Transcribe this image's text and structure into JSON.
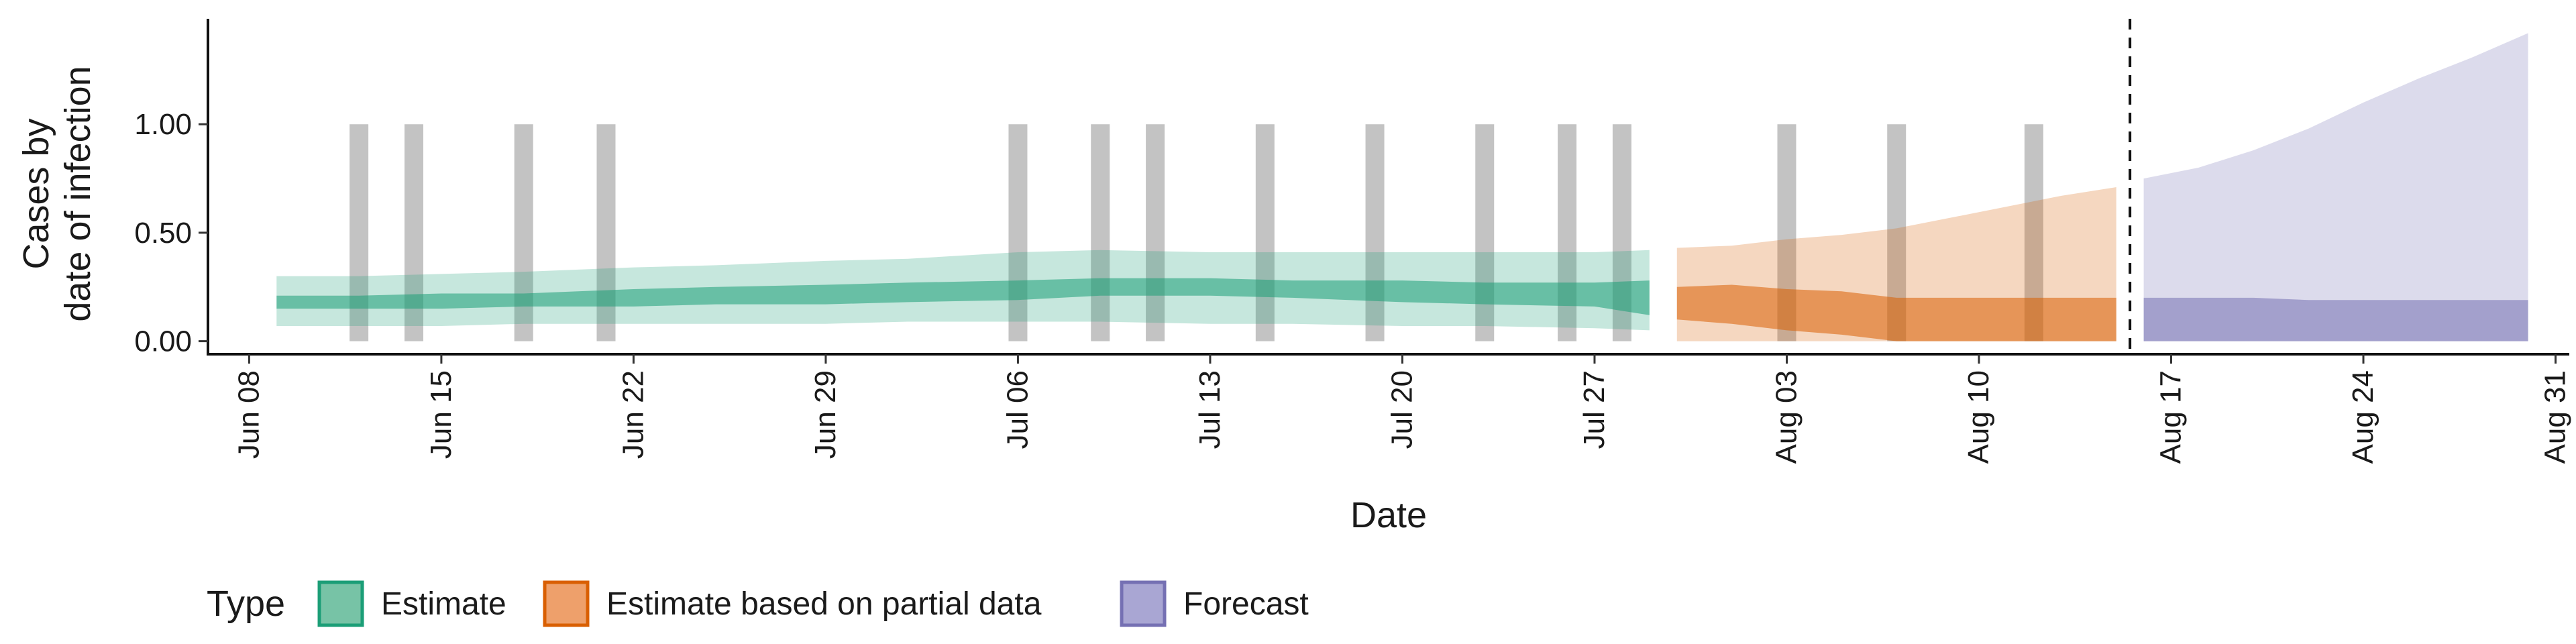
{
  "chart_data": {
    "type": "area",
    "title": "",
    "xlabel": "Date",
    "ylabel_lines": [
      "Cases by",
      "date of infection"
    ],
    "x_start_date": "2020-06-08",
    "xlim": [
      -1.5,
      84.5
    ],
    "ylim": [
      -0.06,
      1.48
    ],
    "y_ticks": [
      0.0,
      0.5,
      1.0
    ],
    "y_tick_labels": [
      "0.00",
      "0.50",
      "1.00"
    ],
    "x_tick_offsets": [
      0,
      7,
      14,
      21,
      28,
      35,
      42,
      49,
      56,
      63,
      70,
      77,
      84
    ],
    "x_tick_labels": [
      "Jun 08",
      "Jun 15",
      "Jun 22",
      "Jun 29",
      "Jul 06",
      "Jul 13",
      "Jul 20",
      "Jul 27",
      "Aug 03",
      "Aug 10",
      "Aug 17",
      "Aug 24",
      "Aug 31"
    ],
    "vertical_reference_line_offset": 68.5,
    "gray_bars": {
      "offsets": [
        4,
        6,
        10,
        13,
        28,
        31,
        33,
        37,
        41,
        45,
        48,
        50,
        56,
        60,
        65
      ],
      "height": 1.0,
      "color": "#bdbdbd"
    },
    "legend": {
      "title": "Type",
      "position": "bottom-left",
      "items": [
        {
          "label": "Estimate",
          "fill": "#77c3a6",
          "stroke": "#1b9e77"
        },
        {
          "label": "Estimate based on partial data",
          "fill": "#eea06b",
          "stroke": "#d95f02"
        },
        {
          "label": "Forecast",
          "fill": "#a9a6d3",
          "stroke": "#7570b3"
        }
      ]
    },
    "series": [
      {
        "name": "Estimate",
        "color": "#1b9e77",
        "x": [
          1,
          4,
          7,
          10,
          14,
          17,
          21,
          24,
          28,
          31,
          35,
          38,
          42,
          45,
          49,
          51
        ],
        "outer_lower": [
          0.07,
          0.07,
          0.07,
          0.08,
          0.08,
          0.08,
          0.08,
          0.09,
          0.09,
          0.09,
          0.08,
          0.08,
          0.07,
          0.07,
          0.06,
          0.05
        ],
        "outer_upper": [
          0.3,
          0.3,
          0.31,
          0.32,
          0.34,
          0.35,
          0.37,
          0.38,
          0.41,
          0.42,
          0.41,
          0.41,
          0.41,
          0.41,
          0.41,
          0.42
        ],
        "inner_lower": [
          0.15,
          0.15,
          0.15,
          0.16,
          0.16,
          0.17,
          0.17,
          0.18,
          0.19,
          0.21,
          0.21,
          0.2,
          0.18,
          0.17,
          0.16,
          0.12
        ],
        "inner_upper": [
          0.21,
          0.21,
          0.22,
          0.22,
          0.24,
          0.25,
          0.26,
          0.27,
          0.28,
          0.29,
          0.29,
          0.28,
          0.28,
          0.27,
          0.27,
          0.28
        ]
      },
      {
        "name": "Estimate based on partial data",
        "color": "#d95f02",
        "x": [
          52,
          54,
          56,
          58,
          60,
          62,
          64,
          66,
          68
        ],
        "outer_lower": [
          0.0,
          0.0,
          0.0,
          0.0,
          0.0,
          0.0,
          0.0,
          0.0,
          0.0
        ],
        "outer_upper": [
          0.43,
          0.44,
          0.47,
          0.49,
          0.52,
          0.57,
          0.62,
          0.67,
          0.71
        ],
        "inner_lower": [
          0.1,
          0.08,
          0.05,
          0.03,
          0.0,
          0.0,
          0.0,
          0.0,
          0.0
        ],
        "inner_upper": [
          0.25,
          0.26,
          0.24,
          0.23,
          0.2,
          0.2,
          0.2,
          0.2,
          0.2
        ]
      },
      {
        "name": "Forecast",
        "color": "#7570b3",
        "x": [
          69,
          71,
          73,
          75,
          77,
          79,
          81,
          83
        ],
        "outer_lower": [
          0.0,
          0.0,
          0.0,
          0.0,
          0.0,
          0.0,
          0.0,
          0.0
        ],
        "outer_upper": [
          0.75,
          0.8,
          0.88,
          0.98,
          1.1,
          1.21,
          1.31,
          1.42
        ],
        "inner_lower": [
          0.0,
          0.0,
          0.0,
          0.0,
          0.0,
          0.0,
          0.0,
          0.0
        ],
        "inner_upper": [
          0.2,
          0.2,
          0.2,
          0.19,
          0.19,
          0.19,
          0.19,
          0.19
        ]
      }
    ]
  }
}
